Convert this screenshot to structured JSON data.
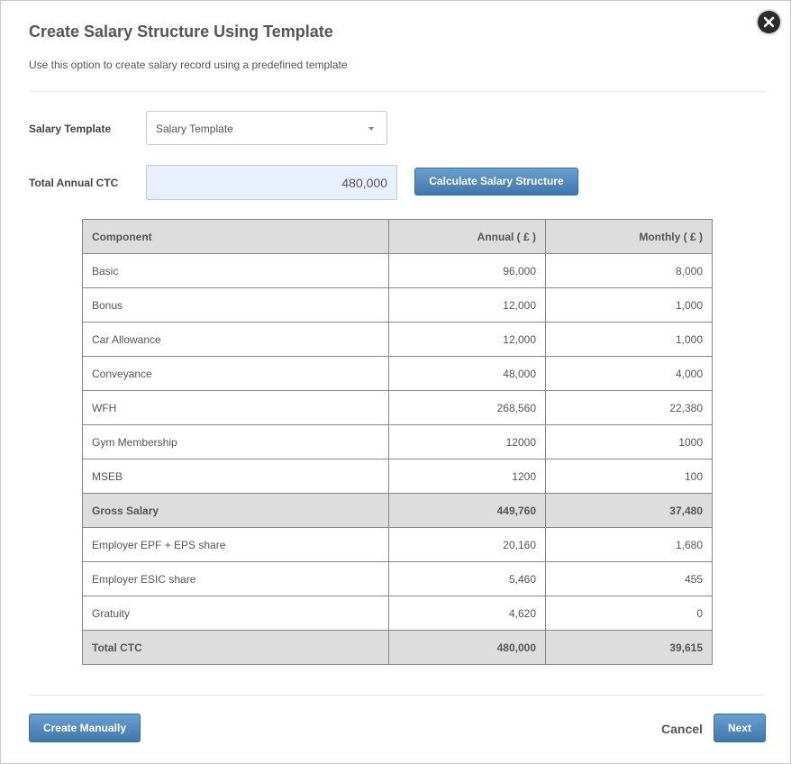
{
  "dialog": {
    "title": "Create Salary Structure Using Template",
    "subtitle": "Use this option to create salary record using a predefined template",
    "close_icon": "close-icon"
  },
  "form": {
    "template_label": "Salary Template",
    "template_selected": "Salary Template",
    "ctc_label": "Total Annual CTC",
    "ctc_value": "480,000",
    "calculate_button": "Calculate Salary Structure"
  },
  "table": {
    "headers": [
      "Component",
      "Annual ( £ )",
      "Monthly ( £ )"
    ],
    "rows": [
      {
        "component": "Basic",
        "annual": "96,000",
        "monthly": "8,000",
        "summary": false
      },
      {
        "component": "Bonus",
        "annual": "12,000",
        "monthly": "1,000",
        "summary": false
      },
      {
        "component": "Car Allowance",
        "annual": "12,000",
        "monthly": "1,000",
        "summary": false
      },
      {
        "component": "Conveyance",
        "annual": "48,000",
        "monthly": "4,000",
        "summary": false
      },
      {
        "component": "WFH",
        "annual": "268,560",
        "monthly": "22,380",
        "summary": false
      },
      {
        "component": "Gym Membership",
        "annual": "12000",
        "monthly": "1000",
        "summary": false
      },
      {
        "component": "MSEB",
        "annual": "1200",
        "monthly": "100",
        "summary": false
      },
      {
        "component": "Gross Salary",
        "annual": "449,760",
        "monthly": "37,480",
        "summary": true
      },
      {
        "component": "Employer EPF + EPS share",
        "annual": "20,160",
        "monthly": "1,680",
        "summary": false
      },
      {
        "component": "Employer ESIC share",
        "annual": "5,460",
        "monthly": "455",
        "summary": false
      },
      {
        "component": "Gratuity",
        "annual": "4,620",
        "monthly": "0",
        "summary": false
      },
      {
        "component": "Total CTC",
        "annual": "480,000",
        "monthly": "39,615",
        "summary": true
      }
    ]
  },
  "footer": {
    "create_manually": "Create Manually",
    "cancel": "Cancel",
    "next": "Next"
  },
  "colors": {
    "primary_button": "#4a82b9",
    "input_highlight": "#e8f0fe",
    "summary_row": "#dddddd"
  }
}
